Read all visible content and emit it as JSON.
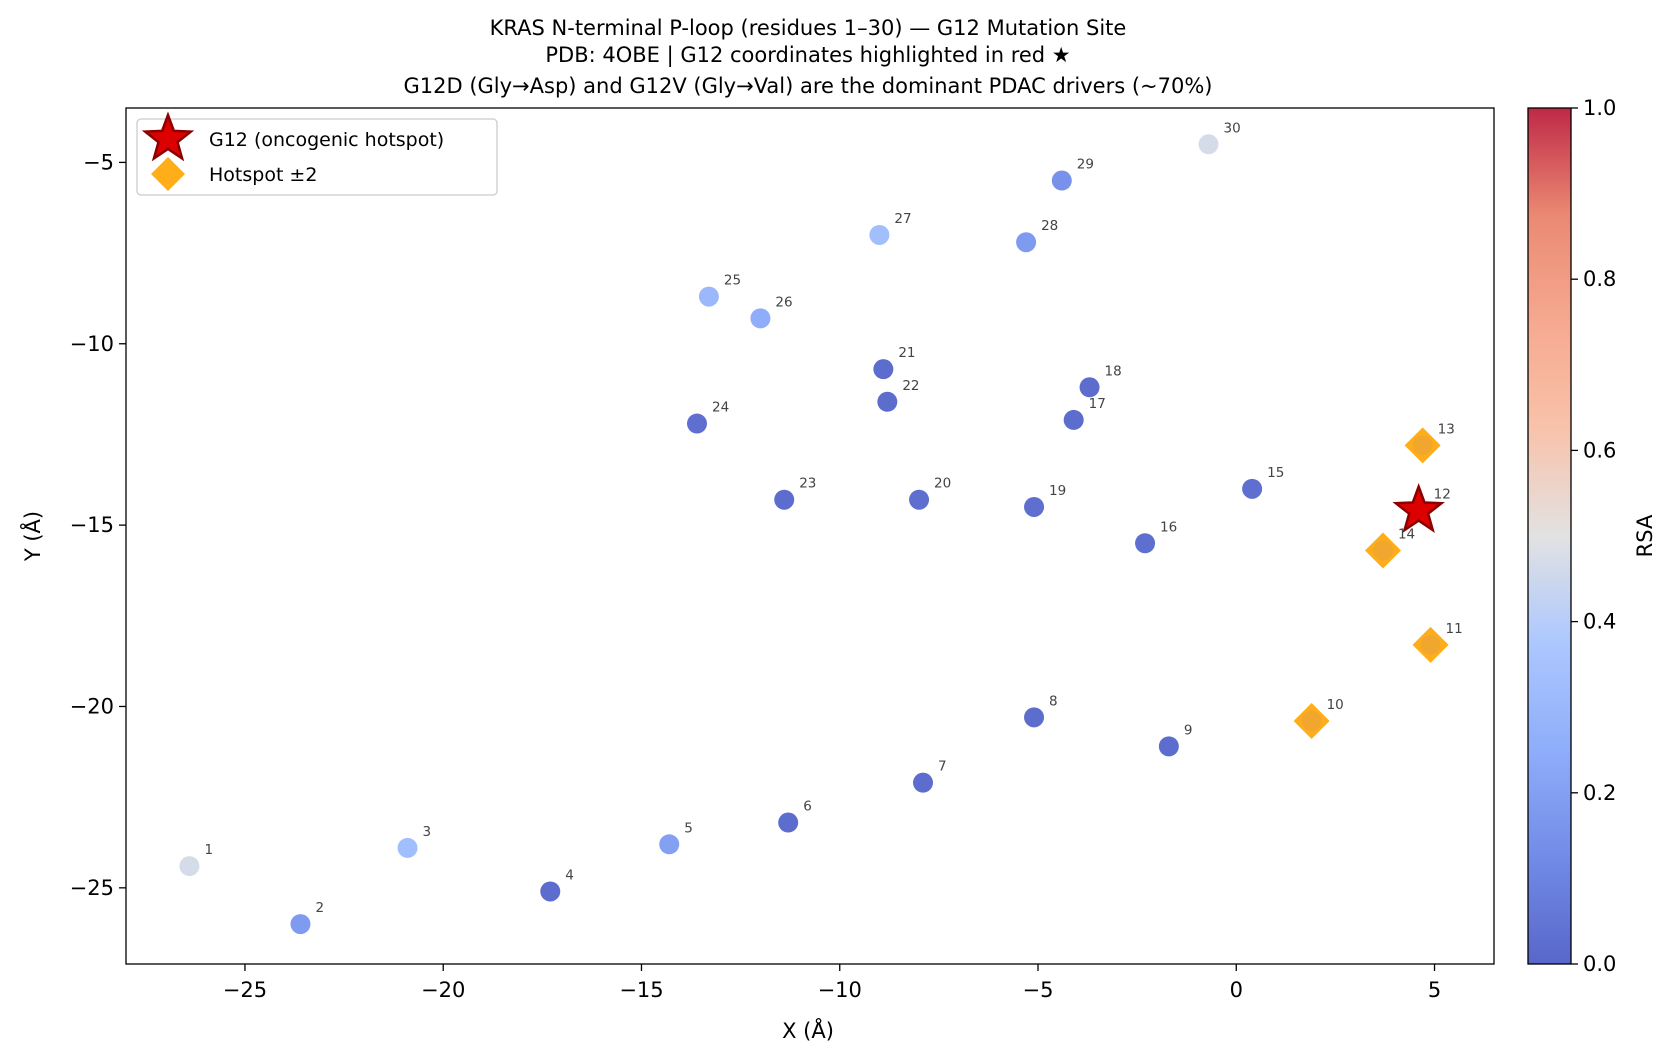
{
  "chart_data": {
    "type": "scatter",
    "title_lines": [
      "KRAS N-terminal P-loop (residues 1–30) — G12 Mutation Site",
      "PDB: 4OBE  |  G12 coordinates highlighted in red ★",
      "G12D (Gly→Asp) and G12V (Gly→Val) are the dominant PDAC drivers (~70%)"
    ],
    "xlabel": "X (Å)",
    "ylabel": "Y (Å)",
    "xlim": [
      -28,
      6.5
    ],
    "ylim": [
      -27.1,
      -3.5
    ],
    "xticks": [
      {
        "value": -25,
        "label": "−25"
      },
      {
        "value": -20,
        "label": "−20"
      },
      {
        "value": -15,
        "label": "−15"
      },
      {
        "value": -10,
        "label": "−10"
      },
      {
        "value": -5,
        "label": "−5"
      },
      {
        "value": 0,
        "label": "0"
      },
      {
        "value": 5,
        "label": "5"
      }
    ],
    "yticks": [
      {
        "value": -5,
        "label": "−5"
      },
      {
        "value": -10,
        "label": "−10"
      },
      {
        "value": -15,
        "label": "−15"
      },
      {
        "value": -20,
        "label": "−20"
      },
      {
        "value": -25,
        "label": "−25"
      }
    ],
    "colorbar": {
      "label": "RSA",
      "range": [
        0,
        1
      ],
      "colormap": "coolwarm",
      "ticks": [
        {
          "value": 0.0,
          "label": "0.0"
        },
        {
          "value": 0.2,
          "label": "0.2"
        },
        {
          "value": 0.4,
          "label": "0.4"
        },
        {
          "value": 0.6,
          "label": "0.6"
        },
        {
          "value": 0.8,
          "label": "0.8"
        },
        {
          "value": 1.0,
          "label": "1.0"
        }
      ]
    },
    "legend": {
      "position": "top-left",
      "entries": [
        {
          "label": "G12 (oncogenic hotspot)",
          "marker": "star",
          "color": "#cc0000"
        },
        {
          "label": "Hotspot ±2",
          "marker": "diamond",
          "color": "#ffa500"
        }
      ]
    },
    "points": [
      {
        "residue": 1,
        "label": "1",
        "x": -26.4,
        "y": -24.4,
        "rsa": 0.47
      },
      {
        "residue": 2,
        "label": "2",
        "x": -23.6,
        "y": -26.0,
        "rsa": 0.18
      },
      {
        "residue": 3,
        "label": "3",
        "x": -20.9,
        "y": -23.9,
        "rsa": 0.33
      },
      {
        "residue": 4,
        "label": "4",
        "x": -17.3,
        "y": -25.1,
        "rsa": 0.02
      },
      {
        "residue": 5,
        "label": "5",
        "x": -14.3,
        "y": -23.8,
        "rsa": 0.2
      },
      {
        "residue": 6,
        "label": "6",
        "x": -11.3,
        "y": -23.2,
        "rsa": 0.02
      },
      {
        "residue": 7,
        "label": "7",
        "x": -7.9,
        "y": -22.1,
        "rsa": 0.02
      },
      {
        "residue": 8,
        "label": "8",
        "x": -5.1,
        "y": -20.3,
        "rsa": 0.02
      },
      {
        "residue": 9,
        "label": "9",
        "x": -1.7,
        "y": -21.1,
        "rsa": 0.02
      },
      {
        "residue": 10,
        "label": "10",
        "x": 1.9,
        "y": -20.4,
        "hotspot": "neighbor"
      },
      {
        "residue": 11,
        "label": "11",
        "x": 4.9,
        "y": -18.3,
        "hotspot": "neighbor"
      },
      {
        "residue": 12,
        "label": "12",
        "x": 4.6,
        "y": -14.6,
        "hotspot": "G12"
      },
      {
        "residue": 13,
        "label": "13",
        "x": 4.7,
        "y": -12.8,
        "hotspot": "neighbor"
      },
      {
        "residue": 14,
        "label": "14",
        "x": 3.7,
        "y": -15.7,
        "hotspot": "neighbor"
      },
      {
        "residue": 15,
        "label": "15",
        "x": 0.4,
        "y": -14.0,
        "rsa": 0.03
      },
      {
        "residue": 16,
        "label": "16",
        "x": -2.3,
        "y": -15.5,
        "rsa": 0.03
      },
      {
        "residue": 17,
        "label": "17",
        "x": -4.1,
        "y": -12.1,
        "rsa": 0.02
      },
      {
        "residue": 18,
        "label": "18",
        "x": -3.7,
        "y": -11.2,
        "rsa": 0.02
      },
      {
        "residue": 19,
        "label": "19",
        "x": -5.1,
        "y": -14.5,
        "rsa": 0.03
      },
      {
        "residue": 20,
        "label": "20",
        "x": -8.0,
        "y": -14.3,
        "rsa": 0.03
      },
      {
        "residue": 21,
        "label": "21",
        "x": -8.9,
        "y": -10.7,
        "rsa": 0.02
      },
      {
        "residue": 22,
        "label": "22",
        "x": -8.8,
        "y": -11.6,
        "rsa": 0.02
      },
      {
        "residue": 23,
        "label": "23",
        "x": -11.4,
        "y": -14.3,
        "rsa": 0.02
      },
      {
        "residue": 24,
        "label": "24",
        "x": -13.6,
        "y": -12.2,
        "rsa": 0.03
      },
      {
        "residue": 25,
        "label": "25",
        "x": -13.3,
        "y": -8.7,
        "rsa": 0.3
      },
      {
        "residue": 26,
        "label": "26",
        "x": -12.0,
        "y": -9.3,
        "rsa": 0.25
      },
      {
        "residue": 27,
        "label": "27",
        "x": -9.0,
        "y": -7.0,
        "rsa": 0.33
      },
      {
        "residue": 28,
        "label": "28",
        "x": -5.3,
        "y": -7.2,
        "rsa": 0.18
      },
      {
        "residue": 29,
        "label": "29",
        "x": -4.4,
        "y": -5.5,
        "rsa": 0.15
      },
      {
        "residue": 30,
        "label": "30",
        "x": -0.7,
        "y": -4.5,
        "rsa": 0.47
      }
    ]
  }
}
